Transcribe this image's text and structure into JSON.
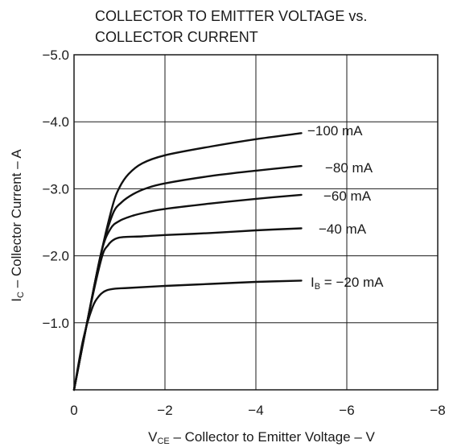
{
  "chart_data": {
    "type": "line",
    "title_lines": [
      "COLLECTOR TO EMITTER VOLTAGE  vs.",
      "COLLECTOR CURRENT"
    ],
    "xlabel": {
      "main": "V",
      "sub": "CE",
      "rest": " – Collector to Emitter Voltage – V"
    },
    "ylabel": {
      "main": "I",
      "sub": "C",
      "rest": " – Collector Current – A"
    },
    "xlim": [
      0,
      -8
    ],
    "ylim": [
      0,
      -5.0
    ],
    "grid": true,
    "x_ticks": [
      {
        "value": 0,
        "label": "0"
      },
      {
        "value": -2,
        "label": "−2"
      },
      {
        "value": -4,
        "label": "−4"
      },
      {
        "value": -6,
        "label": "−6"
      },
      {
        "value": -8,
        "label": "−8"
      }
    ],
    "y_ticks": [
      {
        "value": -1.0,
        "label": "−1.0"
      },
      {
        "value": -2.0,
        "label": "−2.0"
      },
      {
        "value": -3.0,
        "label": "−3.0"
      },
      {
        "value": -4.0,
        "label": "−4.0"
      },
      {
        "value": -5.0,
        "label": "−5.0"
      }
    ],
    "series": [
      {
        "name": "−100 mA",
        "x": [
          0,
          -0.3,
          -0.6,
          -0.85,
          -1.0,
          -1.2,
          -1.5,
          -2.0,
          -3.0,
          -4.0,
          -5.0
        ],
        "y": [
          0,
          -1.05,
          -2.05,
          -2.75,
          -3.02,
          -3.22,
          -3.38,
          -3.5,
          -3.63,
          -3.74,
          -3.83
        ]
      },
      {
        "name": "−80 mA",
        "x": [
          0,
          -0.3,
          -0.6,
          -0.85,
          -1.05,
          -1.3,
          -1.6,
          -2.0,
          -3.0,
          -4.0,
          -5.0
        ],
        "y": [
          0,
          -1.05,
          -2.05,
          -2.62,
          -2.8,
          -2.92,
          -3.01,
          -3.08,
          -3.19,
          -3.27,
          -3.34
        ]
      },
      {
        "name": "−60 mA",
        "x": [
          0,
          -0.3,
          -0.6,
          -0.8,
          -1.0,
          -1.3,
          -1.6,
          -2.0,
          -3.0,
          -4.0,
          -5.0
        ],
        "y": [
          0,
          -1.05,
          -2.05,
          -2.4,
          -2.52,
          -2.6,
          -2.65,
          -2.7,
          -2.78,
          -2.85,
          -2.91
        ]
      },
      {
        "name": "−40 mA",
        "x": [
          0,
          -0.3,
          -0.6,
          -0.75,
          -0.9,
          -1.1,
          -1.5,
          -2.0,
          -3.0,
          -4.0,
          -5.0
        ],
        "y": [
          0,
          -1.05,
          -1.95,
          -2.16,
          -2.25,
          -2.28,
          -2.29,
          -2.31,
          -2.34,
          -2.38,
          -2.41
        ]
      },
      {
        "name": "I_B = −20 mA",
        "x": [
          0,
          -0.2,
          -0.4,
          -0.55,
          -0.7,
          -0.9,
          -1.2,
          -2.0,
          -3.0,
          -4.0,
          -5.0
        ],
        "y": [
          0,
          -0.75,
          -1.22,
          -1.4,
          -1.48,
          -1.51,
          -1.52,
          -1.55,
          -1.58,
          -1.61,
          -1.63
        ]
      }
    ],
    "curve_labels": [
      {
        "text": "−100 mA"
      },
      {
        "text": "−80 mA"
      },
      {
        "text": "−60 mA"
      },
      {
        "text": "−40 mA"
      },
      {
        "text_main": "I",
        "text_sub": "B",
        "text_rest": " = −20 mA"
      }
    ]
  }
}
